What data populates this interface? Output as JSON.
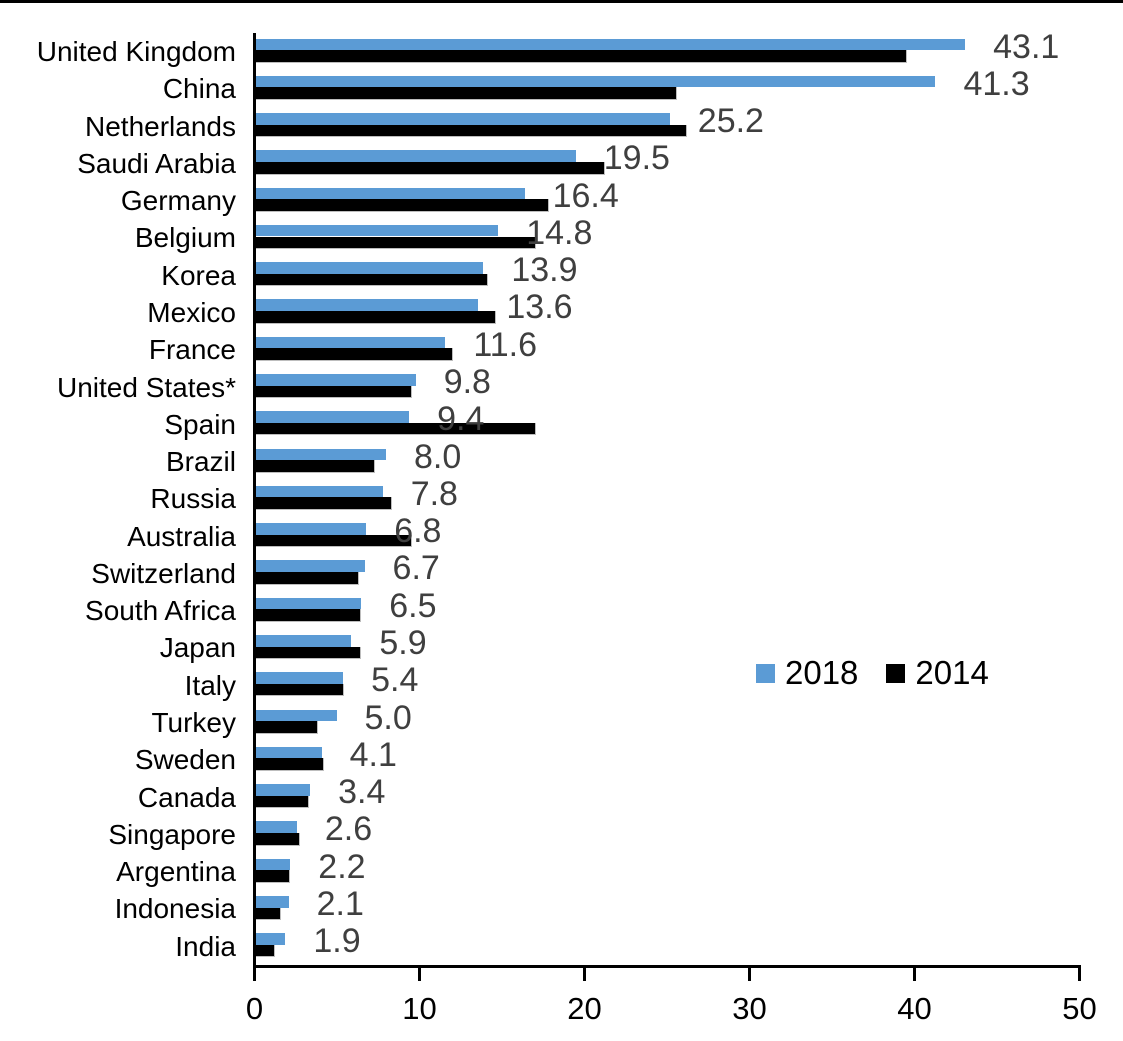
{
  "chart_data": {
    "type": "bar",
    "orientation": "horizontal",
    "title": "",
    "xlabel": "",
    "ylabel": "",
    "xlim": [
      0,
      50
    ],
    "x_ticks": [
      "0",
      "10",
      "20",
      "30",
      "40",
      "50"
    ],
    "grid": false,
    "categories": [
      "United Kingdom",
      "China",
      "Netherlands",
      "Saudi Arabia",
      "Germany",
      "Belgium",
      "Korea",
      "Mexico",
      "France",
      "United States*",
      "Spain",
      "Brazil",
      "Russia",
      "Australia",
      "Switzerland",
      "South Africa",
      "Japan",
      "Italy",
      "Turkey",
      "Sweden",
      "Canada",
      "Singapore",
      "Argentina",
      "Indonesia",
      "India"
    ],
    "series": [
      {
        "name": "2018",
        "color": "#5B9BD5",
        "data_labels_shown": true,
        "values": [
          43.1,
          41.3,
          25.2,
          19.5,
          16.4,
          14.8,
          13.9,
          13.6,
          11.6,
          9.8,
          9.4,
          8.0,
          7.8,
          6.8,
          6.7,
          6.5,
          5.9,
          5.4,
          5.0,
          4.1,
          3.4,
          2.6,
          2.2,
          2.1,
          1.9
        ]
      },
      {
        "name": "2014",
        "color": "#000000",
        "data_labels_shown": false,
        "values": [
          39.5,
          25.6,
          26.2,
          21.2,
          17.8,
          17.0,
          14.1,
          14.6,
          12.0,
          9.5,
          17.0,
          7.3,
          8.3,
          9.5,
          6.3,
          6.4,
          6.4,
          5.4,
          3.8,
          4.2,
          3.3,
          2.7,
          2.1,
          1.6,
          1.2
        ]
      }
    ],
    "data_labels": [
      "43.1",
      "41.3",
      "25.2",
      "19.5",
      "16.4",
      "14.8",
      "13.9",
      "13.6",
      "11.6",
      "9.8",
      "9.4",
      "8.0",
      "7.8",
      "6.8",
      "6.7",
      "6.5",
      "5.9",
      "5.4",
      "5.0",
      "4.1",
      "3.4",
      "2.6",
      "2.2",
      "2.1",
      "1.9"
    ],
    "value_label_color": "#3f3f3f",
    "axis_color": "#000000",
    "legend": {
      "position": "center-right",
      "entries": [
        {
          "label": "2018",
          "color": "#5B9BD5"
        },
        {
          "label": "2014",
          "color": "#000000"
        }
      ]
    }
  }
}
